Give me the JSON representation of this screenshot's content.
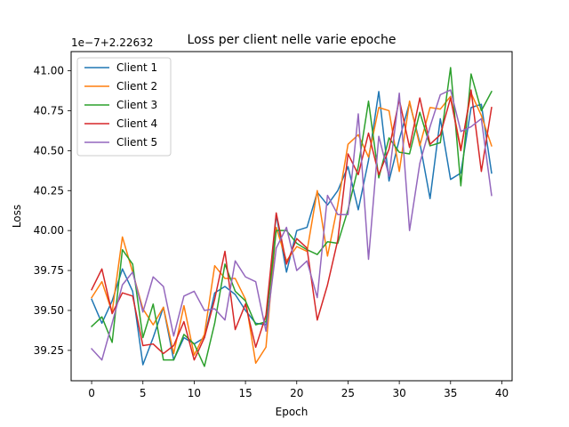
{
  "chart_data": {
    "type": "line",
    "title": "Loss per client nelle varie epoche",
    "xlabel": "Epoch",
    "ylabel": "Loss",
    "y_offset_label": "1e−7+2.22632",
    "xlim": [
      -2,
      41
    ],
    "ylim": [
      39.06,
      41.12
    ],
    "x_ticks": [
      0,
      5,
      10,
      15,
      20,
      25,
      30,
      35,
      40
    ],
    "y_ticks": [
      39.25,
      39.5,
      39.75,
      40.0,
      40.25,
      40.5,
      40.75,
      41.0
    ],
    "y_tick_labels": [
      "39.25",
      "39.50",
      "39.75",
      "40.00",
      "40.25",
      "40.50",
      "40.75",
      "41.00"
    ],
    "grid": false,
    "legend_position": "upper-left",
    "x": [
      0,
      1,
      2,
      3,
      4,
      5,
      6,
      7,
      8,
      9,
      10,
      11,
      12,
      13,
      14,
      15,
      16,
      17,
      18,
      19,
      20,
      21,
      22,
      23,
      24,
      25,
      26,
      27,
      28,
      29,
      30,
      31,
      32,
      33,
      34,
      35,
      36,
      37,
      38,
      39
    ],
    "series": [
      {
        "name": "Client 1",
        "color": "#1f77b4",
        "values": [
          39.57,
          39.42,
          39.56,
          39.76,
          39.62,
          39.16,
          39.33,
          39.52,
          39.19,
          39.33,
          39.29,
          39.33,
          39.61,
          39.65,
          39.6,
          39.5,
          39.42,
          39.41,
          40.1,
          39.74,
          40.0,
          40.02,
          40.24,
          40.16,
          40.25,
          40.4,
          40.13,
          40.44,
          40.87,
          40.31,
          40.57,
          40.8,
          40.55,
          40.2,
          40.7,
          40.32,
          40.36,
          40.77,
          40.79,
          40.36
        ]
      },
      {
        "name": "Client 2",
        "color": "#ff7f0e",
        "values": [
          39.58,
          39.68,
          39.49,
          39.96,
          39.74,
          39.51,
          39.41,
          39.52,
          39.23,
          39.53,
          39.22,
          39.35,
          39.78,
          39.7,
          39.7,
          39.57,
          39.17,
          39.27,
          40.02,
          39.81,
          39.9,
          39.87,
          40.25,
          39.84,
          40.16,
          40.54,
          40.6,
          40.46,
          40.77,
          40.75,
          40.37,
          40.81,
          40.53,
          40.77,
          40.76,
          40.84,
          40.51,
          40.86,
          40.72,
          40.53
        ]
      },
      {
        "name": "Client 3",
        "color": "#2ca02c",
        "values": [
          39.4,
          39.46,
          39.3,
          39.88,
          39.79,
          39.33,
          39.54,
          39.19,
          39.19,
          39.35,
          39.29,
          39.15,
          39.42,
          39.79,
          39.62,
          39.56,
          39.41,
          39.43,
          40.0,
          40.0,
          39.92,
          39.88,
          39.85,
          39.93,
          39.92,
          40.13,
          40.4,
          40.81,
          40.33,
          40.58,
          40.49,
          40.48,
          40.74,
          40.53,
          40.55,
          41.02,
          40.28,
          40.98,
          40.75,
          40.87
        ]
      },
      {
        "name": "Client 4",
        "color": "#d62728",
        "values": [
          39.63,
          39.76,
          39.48,
          39.61,
          39.59,
          39.28,
          39.29,
          39.23,
          39.28,
          39.43,
          39.19,
          39.33,
          39.57,
          39.87,
          39.38,
          39.54,
          39.27,
          39.47,
          40.11,
          39.79,
          39.95,
          39.89,
          39.44,
          39.66,
          39.94,
          40.48,
          40.35,
          40.61,
          40.35,
          40.51,
          40.82,
          40.52,
          40.83,
          40.54,
          40.6,
          40.83,
          40.5,
          40.88,
          40.37,
          40.77
        ]
      },
      {
        "name": "Client 5",
        "color": "#9467bd",
        "values": [
          39.26,
          39.19,
          39.42,
          39.66,
          39.74,
          39.49,
          39.71,
          39.65,
          39.34,
          39.59,
          39.62,
          39.5,
          39.51,
          39.44,
          39.81,
          39.71,
          39.68,
          39.37,
          39.89,
          40.02,
          39.75,
          39.81,
          39.58,
          40.22,
          40.1,
          40.1,
          40.73,
          39.82,
          40.59,
          40.34,
          40.86,
          40.0,
          40.42,
          40.65,
          40.85,
          40.88,
          40.62,
          40.65,
          40.7,
          40.22
        ]
      }
    ]
  }
}
